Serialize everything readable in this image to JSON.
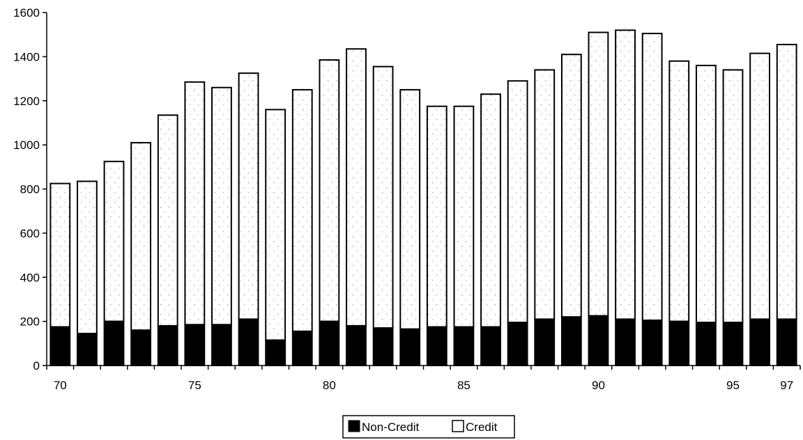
{
  "chart_data": {
    "type": "bar",
    "stacked": true,
    "categories": [
      "70",
      "71",
      "72",
      "73",
      "74",
      "75",
      "76",
      "77",
      "78",
      "79",
      "80",
      "81",
      "82",
      "83",
      "84",
      "85",
      "86",
      "87",
      "88",
      "89",
      "90",
      "91",
      "92",
      "93",
      "94",
      "95",
      "96",
      "97"
    ],
    "x_tick_labels": [
      {
        "category": "70",
        "label": "70"
      },
      {
        "category": "75",
        "label": "75"
      },
      {
        "category": "80",
        "label": "80"
      },
      {
        "category": "85",
        "label": "85"
      },
      {
        "category": "90",
        "label": "90"
      },
      {
        "category": "95",
        "label": "95"
      },
      {
        "category": "97",
        "label": "97"
      }
    ],
    "series": [
      {
        "name": "Non-Credit",
        "color": "#000000",
        "values": [
          175,
          145,
          200,
          160,
          180,
          185,
          185,
          210,
          115,
          155,
          200,
          180,
          170,
          165,
          175,
          175,
          175,
          195,
          210,
          220,
          225,
          210,
          205,
          200,
          195,
          195,
          210,
          210
        ]
      },
      {
        "name": "Credit",
        "color": "#ffffff",
        "values": [
          650,
          690,
          725,
          850,
          955,
          1100,
          1075,
          1115,
          1045,
          1095,
          1185,
          1255,
          1185,
          1085,
          1000,
          1000,
          1055,
          1095,
          1130,
          1190,
          1285,
          1310,
          1300,
          1180,
          1165,
          1145,
          1205,
          1245
        ]
      }
    ],
    "totals": [
      825,
      835,
      925,
      1010,
      1135,
      1285,
      1260,
      1325,
      1160,
      1250,
      1385,
      1435,
      1355,
      1250,
      1175,
      1175,
      1230,
      1290,
      1340,
      1410,
      1510,
      1520,
      1505,
      1380,
      1360,
      1340,
      1415,
      1455
    ],
    "ylim": [
      0,
      1600
    ],
    "y_ticks": [
      "0",
      "200",
      "400",
      "600",
      "800",
      "1000",
      "1200",
      "1400",
      "1600"
    ],
    "title": "",
    "xlabel": "",
    "ylabel": "",
    "grid": false,
    "legend_position": "bottom-center"
  }
}
